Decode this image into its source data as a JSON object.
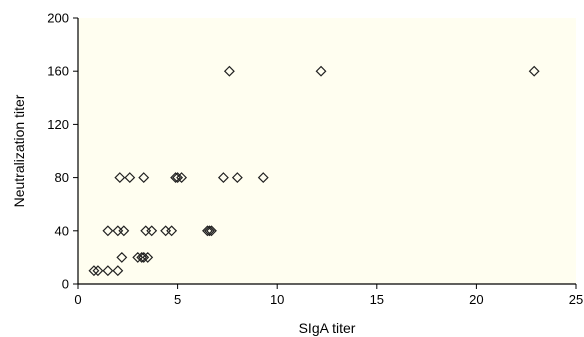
{
  "chart_data": {
    "type": "scatter",
    "title": "",
    "xlabel": "SIgA titer",
    "ylabel": "Neutralization titer",
    "xlim": [
      0,
      25
    ],
    "ylim": [
      0,
      200
    ],
    "x_ticks": [
      "0",
      "5",
      "10",
      "15",
      "20",
      "25"
    ],
    "y_ticks": [
      "0",
      "40",
      "80",
      "120",
      "160",
      "200"
    ],
    "grid": false,
    "legend": "none",
    "marker": "diamond-open",
    "colors": {
      "background": "#FFFEF0",
      "marker": "#222222",
      "axis": "#000000"
    },
    "series": [
      {
        "points": [
          {
            "x": 0.8,
            "y": 10
          },
          {
            "x": 1.0,
            "y": 10
          },
          {
            "x": 1.5,
            "y": 10
          },
          {
            "x": 2.0,
            "y": 10
          },
          {
            "x": 3.0,
            "y": 20
          },
          {
            "x": 3.2,
            "y": 20
          },
          {
            "x": 3.3,
            "y": 20
          },
          {
            "x": 3.5,
            "y": 20
          },
          {
            "x": 2.2,
            "y": 20
          },
          {
            "x": 1.5,
            "y": 40
          },
          {
            "x": 2.0,
            "y": 40
          },
          {
            "x": 2.3,
            "y": 40
          },
          {
            "x": 3.4,
            "y": 40
          },
          {
            "x": 3.7,
            "y": 40
          },
          {
            "x": 4.4,
            "y": 40
          },
          {
            "x": 4.7,
            "y": 40
          },
          {
            "x": 6.5,
            "y": 40
          },
          {
            "x": 6.6,
            "y": 40
          },
          {
            "x": 6.7,
            "y": 40
          },
          {
            "x": 2.1,
            "y": 80
          },
          {
            "x": 2.6,
            "y": 80
          },
          {
            "x": 3.3,
            "y": 80
          },
          {
            "x": 4.9,
            "y": 80
          },
          {
            "x": 5.0,
            "y": 80
          },
          {
            "x": 5.2,
            "y": 80
          },
          {
            "x": 7.3,
            "y": 80
          },
          {
            "x": 8.0,
            "y": 80
          },
          {
            "x": 9.3,
            "y": 80
          },
          {
            "x": 7.6,
            "y": 160
          },
          {
            "x": 12.2,
            "y": 160
          },
          {
            "x": 22.9,
            "y": 160
          }
        ]
      }
    ]
  }
}
